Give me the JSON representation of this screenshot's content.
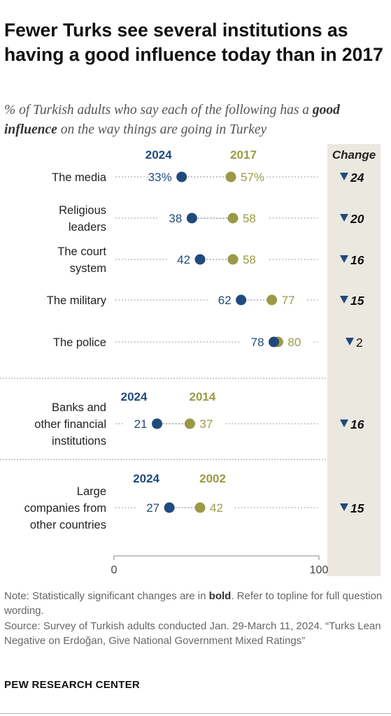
{
  "header": {
    "title": "Fewer Turks see several institutions as having a good influence today than in 2017",
    "subtitle_pre": "% of Turkish adults who say each of the following has a",
    "subtitle_bold": "good influence",
    "subtitle_post": "on the way things are going in Turkey"
  },
  "chart_data": {
    "type": "dot",
    "xlim": [
      0,
      100
    ],
    "x_tick_labels": [
      "0",
      "100"
    ],
    "change_header": "Change",
    "groups": [
      {
        "new_label": "2024",
        "old_label": "2017",
        "rows": [
          {
            "label": [
              "The media"
            ],
            "new": 33,
            "old": 57,
            "new_text": "33%",
            "old_text": "57%",
            "change": "24",
            "significant": true
          },
          {
            "label": [
              "Religious",
              "leaders"
            ],
            "new": 38,
            "old": 58,
            "new_text": "38",
            "old_text": "58",
            "change": "20",
            "significant": true
          },
          {
            "label": [
              "The court",
              "system"
            ],
            "new": 42,
            "old": 58,
            "new_text": "42",
            "old_text": "58",
            "change": "16",
            "significant": true
          },
          {
            "label": [
              "The military"
            ],
            "new": 62,
            "old": 77,
            "new_text": "62",
            "old_text": "77",
            "change": "15",
            "significant": true
          },
          {
            "label": [
              "The police"
            ],
            "new": 78,
            "old": 80,
            "new_text": "78",
            "old_text": "80",
            "change": "2",
            "significant": false
          }
        ]
      },
      {
        "new_label": "2024",
        "old_label": "2014",
        "rows": [
          {
            "label": [
              "Banks and",
              "other financial",
              "institutions"
            ],
            "new": 21,
            "old": 37,
            "new_text": "21",
            "old_text": "37",
            "change": "16",
            "significant": true
          }
        ]
      },
      {
        "new_label": "2024",
        "old_label": "2002",
        "rows": [
          {
            "label": [
              "Large",
              "companies from",
              "other countries"
            ],
            "new": 27,
            "old": 42,
            "new_text": "27",
            "old_text": "42",
            "change": "15",
            "significant": true
          }
        ]
      }
    ]
  },
  "colors": {
    "new": "#1f4a7c",
    "old": "#9a9a45",
    "dots_line": "#aaaaaa",
    "change_band": "#ebe8e0"
  },
  "footer": {
    "note_pre": "Note: Statistically significant changes are in",
    "note_bold": "bold",
    "note_post": ". Refer to topline for full question wording.",
    "source": "Source: Survey of Turkish adults conducted Jan. 29-March 11, 2024. “Turks Lean Negative on Erdoğan, Give National Government Mixed Ratings”",
    "brand": "PEW RESEARCH CENTER"
  }
}
